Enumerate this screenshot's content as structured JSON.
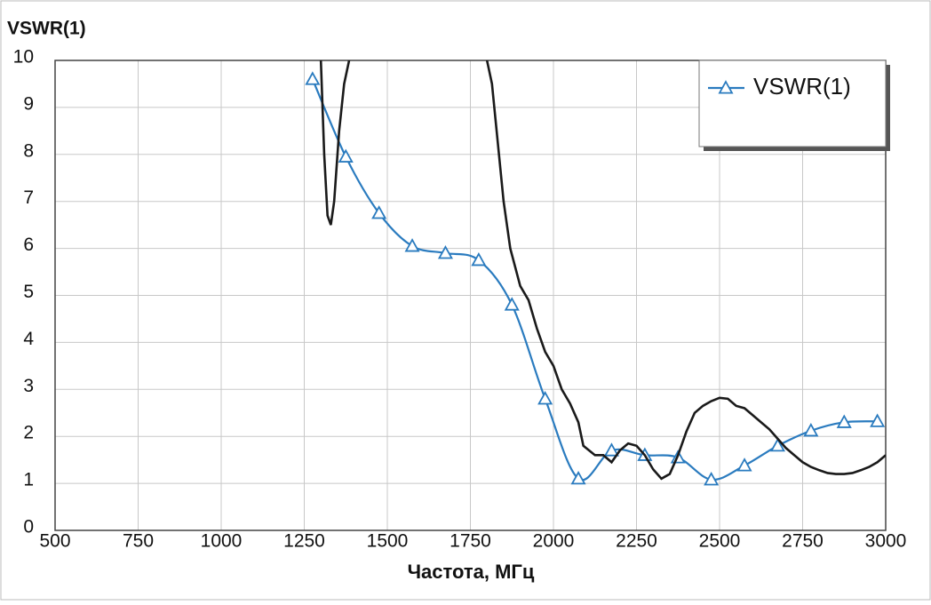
{
  "chart_data": {
    "type": "line",
    "y_label": "VSWR(1)",
    "x_label": "Частота, МГц",
    "xlim": [
      500,
      3000
    ],
    "xticks": [
      500,
      750,
      1000,
      1250,
      1500,
      1750,
      2000,
      2250,
      2500,
      2750,
      3000
    ],
    "ylim": [
      0,
      10
    ],
    "yticks": [
      0,
      1,
      2,
      3,
      4,
      5,
      6,
      7,
      8,
      9,
      10
    ],
    "grid": true,
    "legend": "upper right",
    "series": [
      {
        "name": "VSWR(1)",
        "color": "#2a7bbf",
        "marker": "triangle",
        "x": [
          1275,
          1375,
          1475,
          1575,
          1675,
          1775,
          1875,
          1975,
          2075,
          2175,
          2275,
          2375,
          2475,
          2575,
          2675,
          2775,
          2875,
          2975
        ],
        "values": [
          9.6,
          7.95,
          6.75,
          6.05,
          5.9,
          5.75,
          4.8,
          2.8,
          1.1,
          1.7,
          1.6,
          1.55,
          1.08,
          1.38,
          1.8,
          2.12,
          2.3,
          2.32
        ]
      },
      {
        "color": "#1a1a1a",
        "x": [
          1300,
          1310,
          1320,
          1330,
          1340,
          1355,
          1370,
          1385,
          1600,
          1800,
          1815,
          1850,
          1870,
          1900,
          1925,
          1950,
          1975,
          2000,
          2025,
          2050,
          2075,
          2090,
          2125,
          2150,
          2175,
          2200,
          2225,
          2250,
          2275,
          2300,
          2325,
          2350,
          2375,
          2400,
          2425,
          2450,
          2475,
          2500,
          2525,
          2550,
          2575,
          2600,
          2625,
          2650,
          2675,
          2700,
          2725,
          2750,
          2775,
          2800,
          2825,
          2850,
          2875,
          2900,
          2925,
          2950,
          2975,
          3000
        ],
        "values": [
          10,
          8,
          6.7,
          6.5,
          7,
          8.5,
          9.5,
          10,
          null,
          10,
          9.5,
          7,
          6,
          5.2,
          4.9,
          4.3,
          3.8,
          3.5,
          3.0,
          2.7,
          2.3,
          1.8,
          1.6,
          1.6,
          1.45,
          1.7,
          1.85,
          1.8,
          1.6,
          1.3,
          1.1,
          1.2,
          1.6,
          2.1,
          2.5,
          2.65,
          2.75,
          2.82,
          2.8,
          2.65,
          2.6,
          2.45,
          2.3,
          2.15,
          1.95,
          1.75,
          1.6,
          1.45,
          1.35,
          1.28,
          1.22,
          1.2,
          1.2,
          1.22,
          1.28,
          1.35,
          1.45,
          1.6
        ]
      }
    ]
  }
}
